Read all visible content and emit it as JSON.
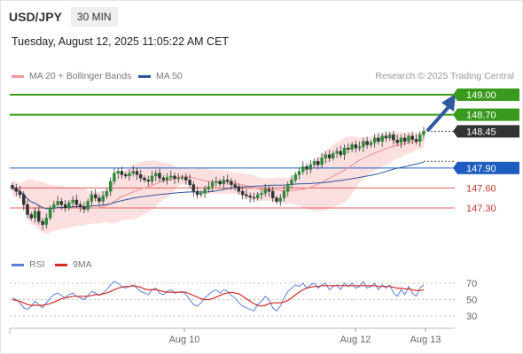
{
  "header": {
    "symbol": "USD/JPY",
    "timeframe": "30 MIN"
  },
  "timestamp": "Tuesday, August 12, 2025 11:05:22 AM CET",
  "credit": "Research © 2025 Trading Central",
  "legend": [
    {
      "label": "MA 20 + Bollinger Bands",
      "color": "#ef9a9a"
    },
    {
      "label": "MA 50",
      "color": "#2f5597"
    }
  ],
  "rsi_legend": [
    {
      "label": "RSI",
      "color": "#5b7fd6"
    },
    {
      "label": "9MA",
      "color": "#d42a2a"
    }
  ],
  "chart_data": [
    {
      "type": "line",
      "subtype": "candlestick",
      "y_axis_side": "right",
      "levels": [
        {
          "value": 149.0,
          "label": "149.00",
          "kind": "resistance",
          "color": "#3a9a1d",
          "label_color": "#ffffff",
          "box": true
        },
        {
          "value": 148.7,
          "label": "148.70",
          "kind": "resistance",
          "color": "#3a9a1d",
          "label_color": "#ffffff",
          "box": true
        },
        {
          "value": 148.45,
          "label": "148.45",
          "kind": "last-price",
          "color": "#333333",
          "label_color": "#ffffff",
          "box": true
        },
        {
          "value": 147.9,
          "label": "147.90",
          "kind": "pivot",
          "color": "#1e5dbf",
          "label_color": "#ffffff",
          "box": true
        },
        {
          "value": 147.6,
          "label": "147.60",
          "kind": "support",
          "color": "#e06060",
          "label_color": "#c0392b",
          "box": false
        },
        {
          "value": 147.3,
          "label": "147.30",
          "kind": "support",
          "color": "#e06060",
          "label_color": "#c0392b",
          "box": false
        }
      ],
      "x_ticks": [
        "Aug 10",
        "Aug 12",
        "Aug 13"
      ],
      "ylim": [
        147.0,
        149.15
      ],
      "close": [
        147.6,
        147.55,
        147.5,
        147.35,
        147.2,
        147.15,
        147.25,
        147.1,
        147.05,
        147.15,
        147.3,
        147.35,
        147.4,
        147.35,
        147.3,
        147.38,
        147.42,
        147.35,
        147.32,
        147.28,
        147.4,
        147.5,
        147.45,
        147.4,
        147.48,
        147.55,
        147.7,
        147.82,
        147.85,
        147.8,
        147.78,
        147.82,
        147.85,
        147.8,
        147.75,
        147.72,
        147.7,
        147.78,
        147.82,
        147.75,
        147.72,
        147.76,
        147.78,
        147.74,
        147.75,
        147.76,
        147.72,
        147.65,
        147.55,
        147.5,
        147.52,
        147.58,
        147.62,
        147.68,
        147.7,
        147.66,
        147.72,
        147.7,
        147.65,
        147.62,
        147.55,
        147.5,
        147.48,
        147.46,
        147.45,
        147.5,
        147.52,
        147.58,
        147.55,
        147.45,
        147.4,
        147.45,
        147.55,
        147.65,
        147.72,
        147.8,
        147.85,
        147.92,
        147.88,
        147.95,
        148.0,
        147.95,
        148.05,
        148.1,
        148.05,
        148.12,
        148.15,
        148.1,
        148.2,
        148.18,
        148.25,
        148.2,
        148.22,
        148.3,
        148.25,
        148.28,
        148.35,
        148.3,
        148.38,
        148.35,
        148.4,
        148.32,
        148.28,
        148.35,
        148.3,
        148.38,
        148.33,
        148.3,
        148.4,
        148.45
      ],
      "rsi": {
        "levels": [
          70,
          50,
          30
        ],
        "ylim": [
          20,
          80
        ],
        "rsi": [
          52,
          50,
          46,
          40,
          38,
          42,
          48,
          44,
          40,
          46,
          52,
          56,
          58,
          55,
          52,
          56,
          58,
          54,
          52,
          50,
          55,
          60,
          58,
          55,
          58,
          62,
          68,
          72,
          70,
          66,
          64,
          66,
          68,
          64,
          60,
          58,
          56,
          62,
          64,
          58,
          56,
          60,
          62,
          58,
          59,
          60,
          56,
          50,
          44,
          42,
          46,
          52,
          56,
          60,
          62,
          58,
          62,
          60,
          55,
          52,
          46,
          42,
          40,
          38,
          36,
          44,
          48,
          54,
          50,
          40,
          36,
          42,
          52,
          60,
          64,
          68,
          66,
          70,
          64,
          68,
          70,
          64,
          68,
          70,
          62,
          66,
          68,
          62,
          70,
          66,
          70,
          64,
          66,
          72,
          64,
          66,
          70,
          62,
          68,
          64,
          68,
          58,
          54,
          62,
          56,
          66,
          58,
          54,
          64,
          68
        ],
        "ma9": [
          50,
          49,
          48,
          46,
          44,
          43,
          43,
          43,
          43,
          44,
          45,
          47,
          49,
          51,
          52,
          53,
          54,
          54,
          54,
          54,
          54,
          55,
          56,
          56,
          57,
          58,
          60,
          62,
          64,
          65,
          66,
          66,
          67,
          66,
          65,
          63,
          62,
          62,
          62,
          61,
          60,
          59,
          59,
          59,
          59,
          59,
          59,
          57,
          55,
          53,
          51,
          50,
          50,
          51,
          53,
          55,
          57,
          58,
          59,
          58,
          57,
          54,
          51,
          48,
          45,
          43,
          42,
          43,
          45,
          46,
          46,
          46,
          47,
          49,
          52,
          56,
          59,
          62,
          64,
          65,
          66,
          66,
          67,
          67,
          67,
          67,
          67,
          67,
          67,
          67,
          67,
          67,
          67,
          67,
          67,
          67,
          67,
          66,
          66,
          66,
          66,
          65,
          64,
          64,
          63,
          63,
          62,
          61,
          61,
          62
        ]
      }
    }
  ]
}
